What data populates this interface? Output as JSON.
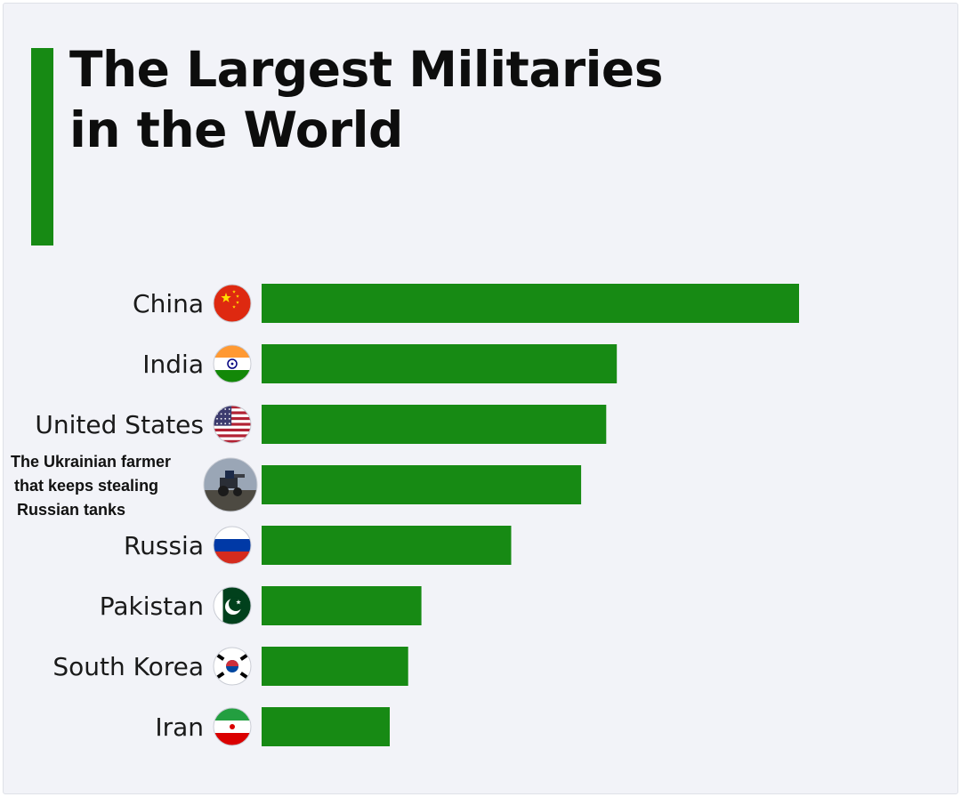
{
  "title_lines": [
    "The Largest Militaries",
    "in the World"
  ],
  "colors": {
    "bar": "#178a14",
    "background": "#f2f3f8",
    "text": "#1a1a1a"
  },
  "chart_data": {
    "type": "bar",
    "orientation": "horizontal",
    "title": "The Largest Militaries in the World",
    "categories": [
      "China",
      "India",
      "United States",
      "The Ukrainian farmer that keeps stealing Russian tanks",
      "Russia",
      "Pakistan",
      "South Korea",
      "Iran"
    ],
    "category_lines": [
      [
        "China"
      ],
      [
        "India"
      ],
      [
        "United States"
      ],
      [
        "The Ukrainian farmer",
        "that keeps stealing",
        "Russian tanks"
      ],
      [
        "Russia"
      ],
      [
        "Pakistan"
      ],
      [
        "South Korea"
      ],
      [
        "Iran"
      ]
    ],
    "icons": [
      "china-flag-icon",
      "india-flag-icon",
      "usa-flag-icon",
      "tractor-photo-icon",
      "russia-flag-icon",
      "pakistan-flag-icon",
      "south-korea-flag-icon",
      "iran-flag-icon"
    ],
    "values": [
      2035,
      1345,
      1305,
      1210,
      945,
      605,
      555,
      485
    ],
    "xlim": [
      0,
      2035
    ],
    "xlabel": "",
    "ylabel": "",
    "grid": false,
    "legend": "none"
  }
}
